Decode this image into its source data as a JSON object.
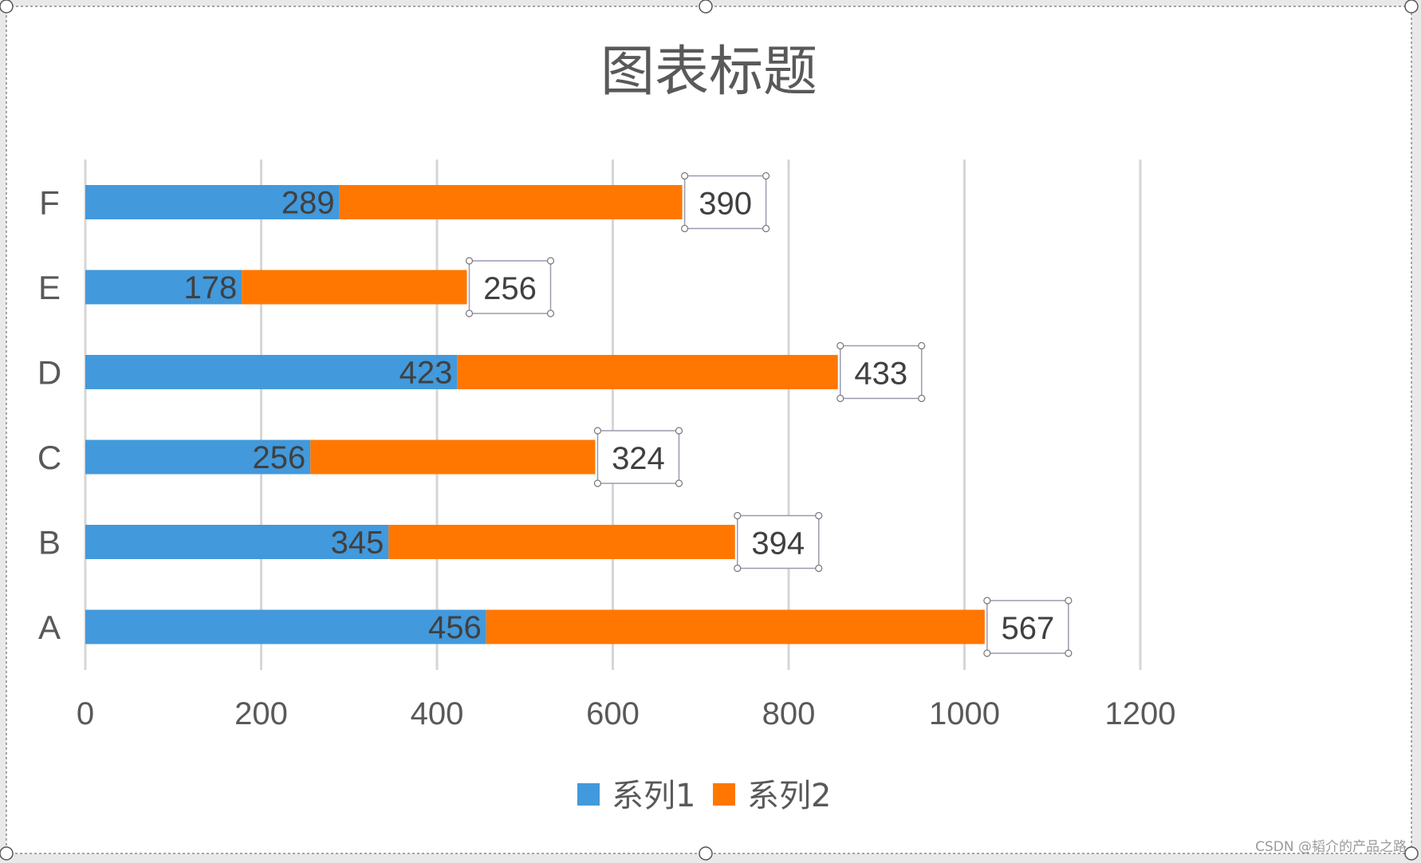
{
  "chart_data": {
    "type": "bar",
    "orientation": "horizontal",
    "stacked": true,
    "title": "图表标题",
    "categories": [
      "A",
      "B",
      "C",
      "D",
      "E",
      "F"
    ],
    "series": [
      {
        "name": "系列1",
        "values": [
          456,
          345,
          256,
          423,
          178,
          289
        ],
        "color": "#4299DB"
      },
      {
        "name": "系列2",
        "values": [
          567,
          394,
          324,
          433,
          256,
          390
        ],
        "color": "#FF7700"
      }
    ],
    "xlim": [
      0,
      1200
    ],
    "xticks": [
      0,
      200,
      400,
      600,
      800,
      1000,
      1200
    ],
    "grid": true,
    "legend_position": "bottom"
  },
  "watermark": "CSDN @韬介的产品之路"
}
